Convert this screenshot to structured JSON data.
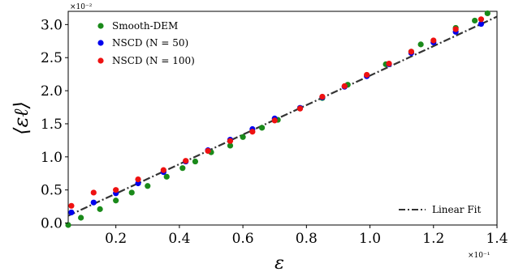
{
  "chart_data": {
    "type": "scatter",
    "xlabel": "ε",
    "ylabel": "⟨εℓ⟩",
    "x_multiplier": "×10⁻¹",
    "y_multiplier": "×10⁻²",
    "xlim": [
      0.05,
      1.4
    ],
    "ylim": [
      -0.03,
      3.2
    ],
    "x_ticks": [
      0.2,
      0.4,
      0.6,
      0.8,
      1.0,
      1.2,
      1.4
    ],
    "x_tick_labels": [
      "0.2",
      "0.4",
      "0.6",
      "0.8",
      "1.0",
      "1.2",
      "1.4"
    ],
    "y_ticks": [
      0.0,
      0.5,
      1.0,
      1.5,
      2.0,
      2.5,
      3.0
    ],
    "y_tick_labels": [
      "0.0",
      "0.5",
      "1.0",
      "1.5",
      "2.0",
      "2.5",
      "3.0"
    ],
    "grid": false,
    "series": [
      {
        "name": "Smooth-DEM",
        "color": "#1a8a1a",
        "points": [
          [
            0.05,
            -0.03
          ],
          [
            0.09,
            0.08
          ],
          [
            0.15,
            0.21
          ],
          [
            0.2,
            0.34
          ],
          [
            0.25,
            0.46
          ],
          [
            0.3,
            0.56
          ],
          [
            0.36,
            0.7
          ],
          [
            0.41,
            0.83
          ],
          [
            0.45,
            0.93
          ],
          [
            0.5,
            1.07
          ],
          [
            0.56,
            1.17
          ],
          [
            0.6,
            1.3
          ],
          [
            0.66,
            1.44
          ],
          [
            0.71,
            1.56
          ],
          [
            0.78,
            1.74
          ],
          [
            0.85,
            1.89
          ],
          [
            0.93,
            2.09
          ],
          [
            1.05,
            2.4
          ],
          [
            1.13,
            2.59
          ],
          [
            1.16,
            2.7
          ],
          [
            1.27,
            2.95
          ],
          [
            1.33,
            3.06
          ],
          [
            1.37,
            3.17
          ]
        ]
      },
      {
        "name": "NSCD (N = 50)",
        "color": "#0000ee",
        "points": [
          [
            0.06,
            0.16
          ],
          [
            0.13,
            0.31
          ],
          [
            0.2,
            0.45
          ],
          [
            0.27,
            0.6
          ],
          [
            0.35,
            0.77
          ],
          [
            0.42,
            0.93
          ],
          [
            0.49,
            1.1
          ],
          [
            0.56,
            1.26
          ],
          [
            0.63,
            1.42
          ],
          [
            0.7,
            1.58
          ],
          [
            0.78,
            1.74
          ],
          [
            0.85,
            1.9
          ],
          [
            0.92,
            2.06
          ],
          [
            0.99,
            2.22
          ],
          [
            1.06,
            2.4
          ],
          [
            1.13,
            2.57
          ],
          [
            1.2,
            2.73
          ],
          [
            1.27,
            2.89
          ],
          [
            1.35,
            3.01
          ]
        ]
      },
      {
        "name": "NSCD (N = 100)",
        "color": "#ee1111",
        "points": [
          [
            0.06,
            0.26
          ],
          [
            0.13,
            0.46
          ],
          [
            0.2,
            0.5
          ],
          [
            0.27,
            0.66
          ],
          [
            0.35,
            0.8
          ],
          [
            0.42,
            0.94
          ],
          [
            0.49,
            1.09
          ],
          [
            0.56,
            1.24
          ],
          [
            0.63,
            1.38
          ],
          [
            0.7,
            1.55
          ],
          [
            0.78,
            1.73
          ],
          [
            0.85,
            1.91
          ],
          [
            0.92,
            2.07
          ],
          [
            0.99,
            2.24
          ],
          [
            1.06,
            2.41
          ],
          [
            1.13,
            2.59
          ],
          [
            1.2,
            2.76
          ],
          [
            1.27,
            2.93
          ],
          [
            1.35,
            3.08
          ]
        ]
      }
    ],
    "fit": {
      "name": "Linear Fit",
      "color": "#333333",
      "style": "dash-dot",
      "x": [
        0.05,
        1.4
      ],
      "y": [
        0.11,
        3.12
      ]
    },
    "legend_placement": "top-left",
    "fit_legend_placement": "bottom-right"
  }
}
